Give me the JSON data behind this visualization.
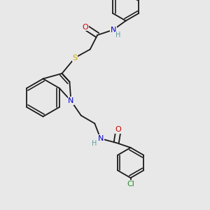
{
  "background_color": "#e8e8e8",
  "bond_color": "#1a1a1a",
  "figsize": [
    3.0,
    3.0
  ],
  "dpi": 100,
  "lw": 1.3,
  "dbl_off": 0.012,
  "atom_colors": {
    "N": "#0000cc",
    "H": "#5f9ea0",
    "O": "#cc0000",
    "S": "#ccaa00",
    "Cl": "#228B22"
  }
}
